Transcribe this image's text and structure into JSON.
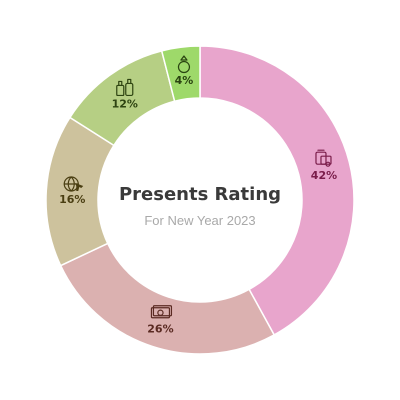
{
  "chart_data": {
    "type": "pie",
    "style": "donut",
    "title": "Presents Rating",
    "subtitle": "For New Year 2023",
    "categories": [
      "Gadgets",
      "Money",
      "Travel",
      "Cosmetics",
      "Jewelry"
    ],
    "values": [
      42,
      26,
      16,
      12,
      4
    ],
    "value_labels": [
      "42%",
      "26%",
      "16%",
      "12%",
      "4%"
    ],
    "colors": [
      "#e8a5cc",
      "#dbb1b0",
      "#cdc29d",
      "#b6cf84",
      "#9ed96a"
    ],
    "label_colors": [
      "#7a1d4a",
      "#5a2a22",
      "#4a3e12",
      "#2e4411",
      "#2a4411"
    ],
    "icons": [
      "gadgets-icon",
      "banknote-icon",
      "globe-plane-icon",
      "cosmetics-icon",
      "ring-icon"
    ],
    "start_angle_deg": 0,
    "direction": "clockwise",
    "legend": "none"
  }
}
